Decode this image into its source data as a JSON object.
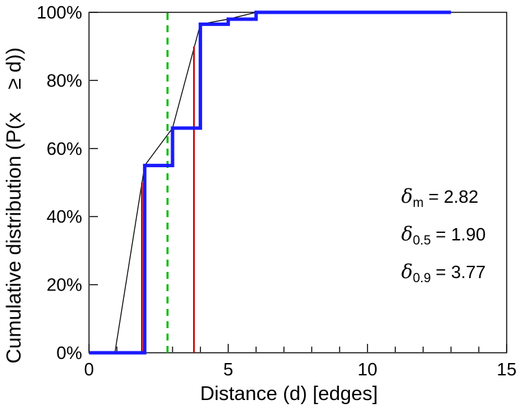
{
  "chart_data": {
    "type": "line",
    "title": "",
    "xlabel": "Distance (d) [edges]",
    "ylabel": "Cumulative distribution (P(x    ≥ d))",
    "xlim": [
      0,
      15
    ],
    "ylim": [
      0,
      100
    ],
    "grid": false,
    "legend": "none",
    "x_ticks_major": [
      0,
      5,
      10,
      15
    ],
    "x_tick_labels": [
      "0",
      "5",
      "10",
      "15"
    ],
    "x_ticks_minor": [
      1,
      2,
      3,
      4,
      6,
      7,
      8,
      9,
      11,
      12,
      13,
      14
    ],
    "y_ticks": [
      0,
      20,
      40,
      60,
      80,
      100
    ],
    "y_tick_labels": [
      "0%",
      "20%",
      "40%",
      "60%",
      "80%",
      "100%"
    ],
    "series": [
      {
        "name": "linear-interpolation-line",
        "color": "#000000",
        "width": 1.3,
        "points": [
          [
            0.93,
            0
          ],
          [
            2,
            55
          ],
          [
            3,
            66
          ],
          [
            4,
            96.5
          ],
          [
            5,
            98
          ],
          [
            6,
            100
          ],
          [
            13,
            100
          ]
        ]
      },
      {
        "name": "cdf-step-line",
        "color": "#1a1aff",
        "width": 5,
        "points": [
          [
            0,
            0
          ],
          [
            2,
            0
          ],
          [
            2,
            55
          ],
          [
            3,
            55
          ],
          [
            3,
            66
          ],
          [
            4,
            66
          ],
          [
            4,
            96.5
          ],
          [
            5,
            96.5
          ],
          [
            5,
            98
          ],
          [
            6,
            98
          ],
          [
            6,
            100
          ],
          [
            13,
            100
          ]
        ]
      }
    ],
    "vlines": [
      {
        "name": "median-percentile-line",
        "x": 1.9,
        "y0": 0,
        "y1": 50,
        "color": "#cc0000",
        "width": 2.5,
        "dash": ""
      },
      {
        "name": "p90-percentile-line",
        "x": 3.77,
        "y0": 0,
        "y1": 90,
        "color": "#cc0000",
        "width": 2.5,
        "dash": ""
      },
      {
        "name": "mean-distance-line",
        "x": 2.82,
        "y0": 0,
        "y1": 100,
        "color": "#00bb00",
        "width": 3,
        "dash": "10,8"
      }
    ],
    "annotations": {
      "mean": {
        "symbol": "δ",
        "sub": "m",
        "value": "= 2.82"
      },
      "p50": {
        "symbol": "δ",
        "sub": "0.5",
        "value": "= 1.90"
      },
      "p90": {
        "symbol": "δ",
        "sub": "0.9",
        "value": "= 3.77"
      }
    }
  }
}
